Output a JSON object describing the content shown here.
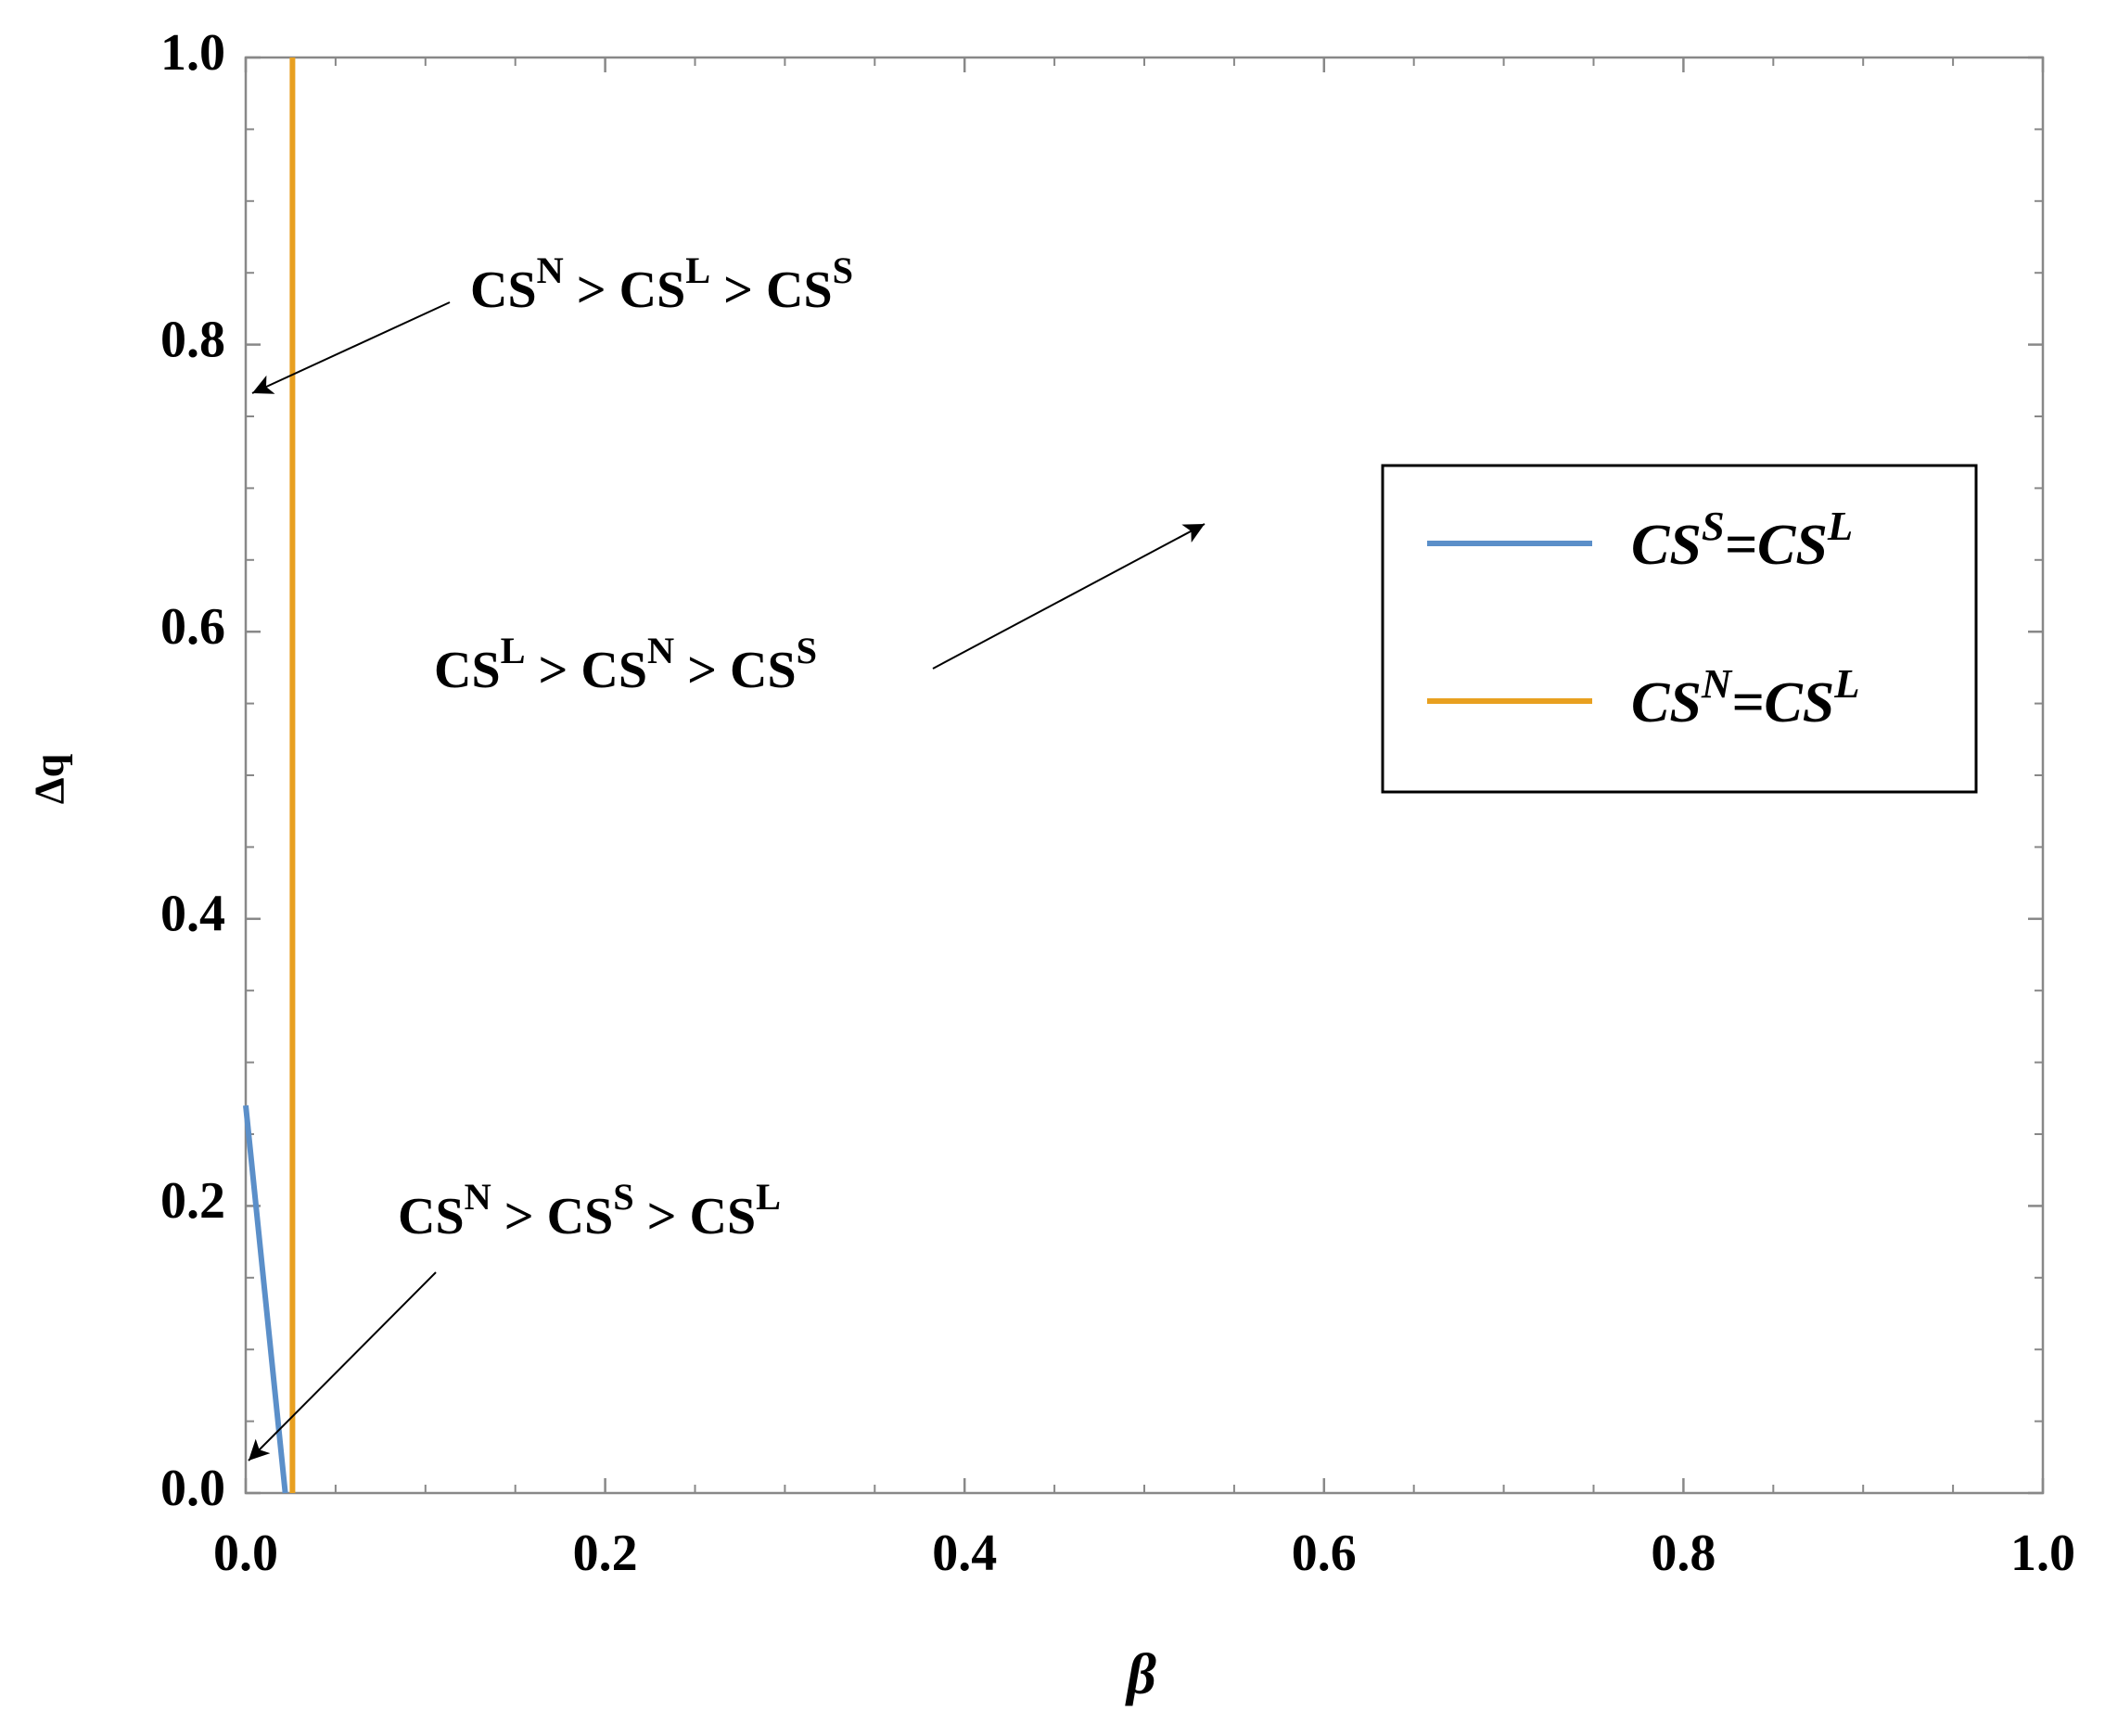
{
  "chart_data": {
    "type": "line",
    "xlabel": "β",
    "ylabel": "Δq",
    "xlim": [
      0,
      1
    ],
    "ylim": [
      0,
      1
    ],
    "xticks": [
      {
        "value": 0,
        "label": "0.0"
      },
      0.2,
      0.4,
      0.6,
      0.8,
      {
        "value": 1,
        "label": "1.0"
      }
    ],
    "yticks": [
      {
        "value": 0,
        "label": "0.0"
      },
      0.2,
      0.4,
      0.6,
      0.8,
      {
        "value": 1,
        "label": "1.0"
      }
    ],
    "xminorticks": [
      0.05,
      0.1,
      0.15,
      0.25,
      0.3,
      0.35,
      0.45,
      0.5,
      0.55,
      0.65,
      0.7,
      0.75,
      0.85,
      0.9,
      0.95
    ],
    "yminorticks": [
      0.05,
      0.1,
      0.15,
      0.25,
      0.3,
      0.35,
      0.45,
      0.5,
      0.55,
      0.65,
      0.7,
      0.75,
      0.85,
      0.9,
      0.95
    ],
    "series": [
      {
        "name": [
          {
            "text": "CS"
          },
          {
            "sup": "S"
          },
          {
            "text": "=CS"
          },
          {
            "sup": "L"
          }
        ],
        "color": "#5b8fc9",
        "x": [
          0,
          0.022
        ],
        "values": [
          0.27,
          0
        ]
      },
      {
        "name": [
          {
            "text": "CS"
          },
          {
            "sup": "N"
          },
          {
            "text": "=CS"
          },
          {
            "sup": "L"
          }
        ],
        "color": "#e8a020",
        "x": [
          0.026,
          0.026
        ],
        "values": [
          0,
          1
        ]
      }
    ],
    "annotations": [
      [
        {
          "text": "CS"
        },
        {
          "sup": "N"
        },
        {
          "text": " > CS"
        },
        {
          "sup": "L"
        },
        {
          "text": " > CS"
        },
        {
          "sup": "S"
        }
      ],
      [
        {
          "text": "CS"
        },
        {
          "sup": "L"
        },
        {
          "text": " > CS"
        },
        {
          "sup": "N"
        },
        {
          "text": " > CS"
        },
        {
          "sup": "S"
        }
      ],
      [
        {
          "text": "CS"
        },
        {
          "sup": "N"
        },
        {
          "text": " > CS"
        },
        {
          "sup": "S"
        },
        {
          "text": " > CS"
        },
        {
          "sup": "L"
        }
      ]
    ]
  }
}
